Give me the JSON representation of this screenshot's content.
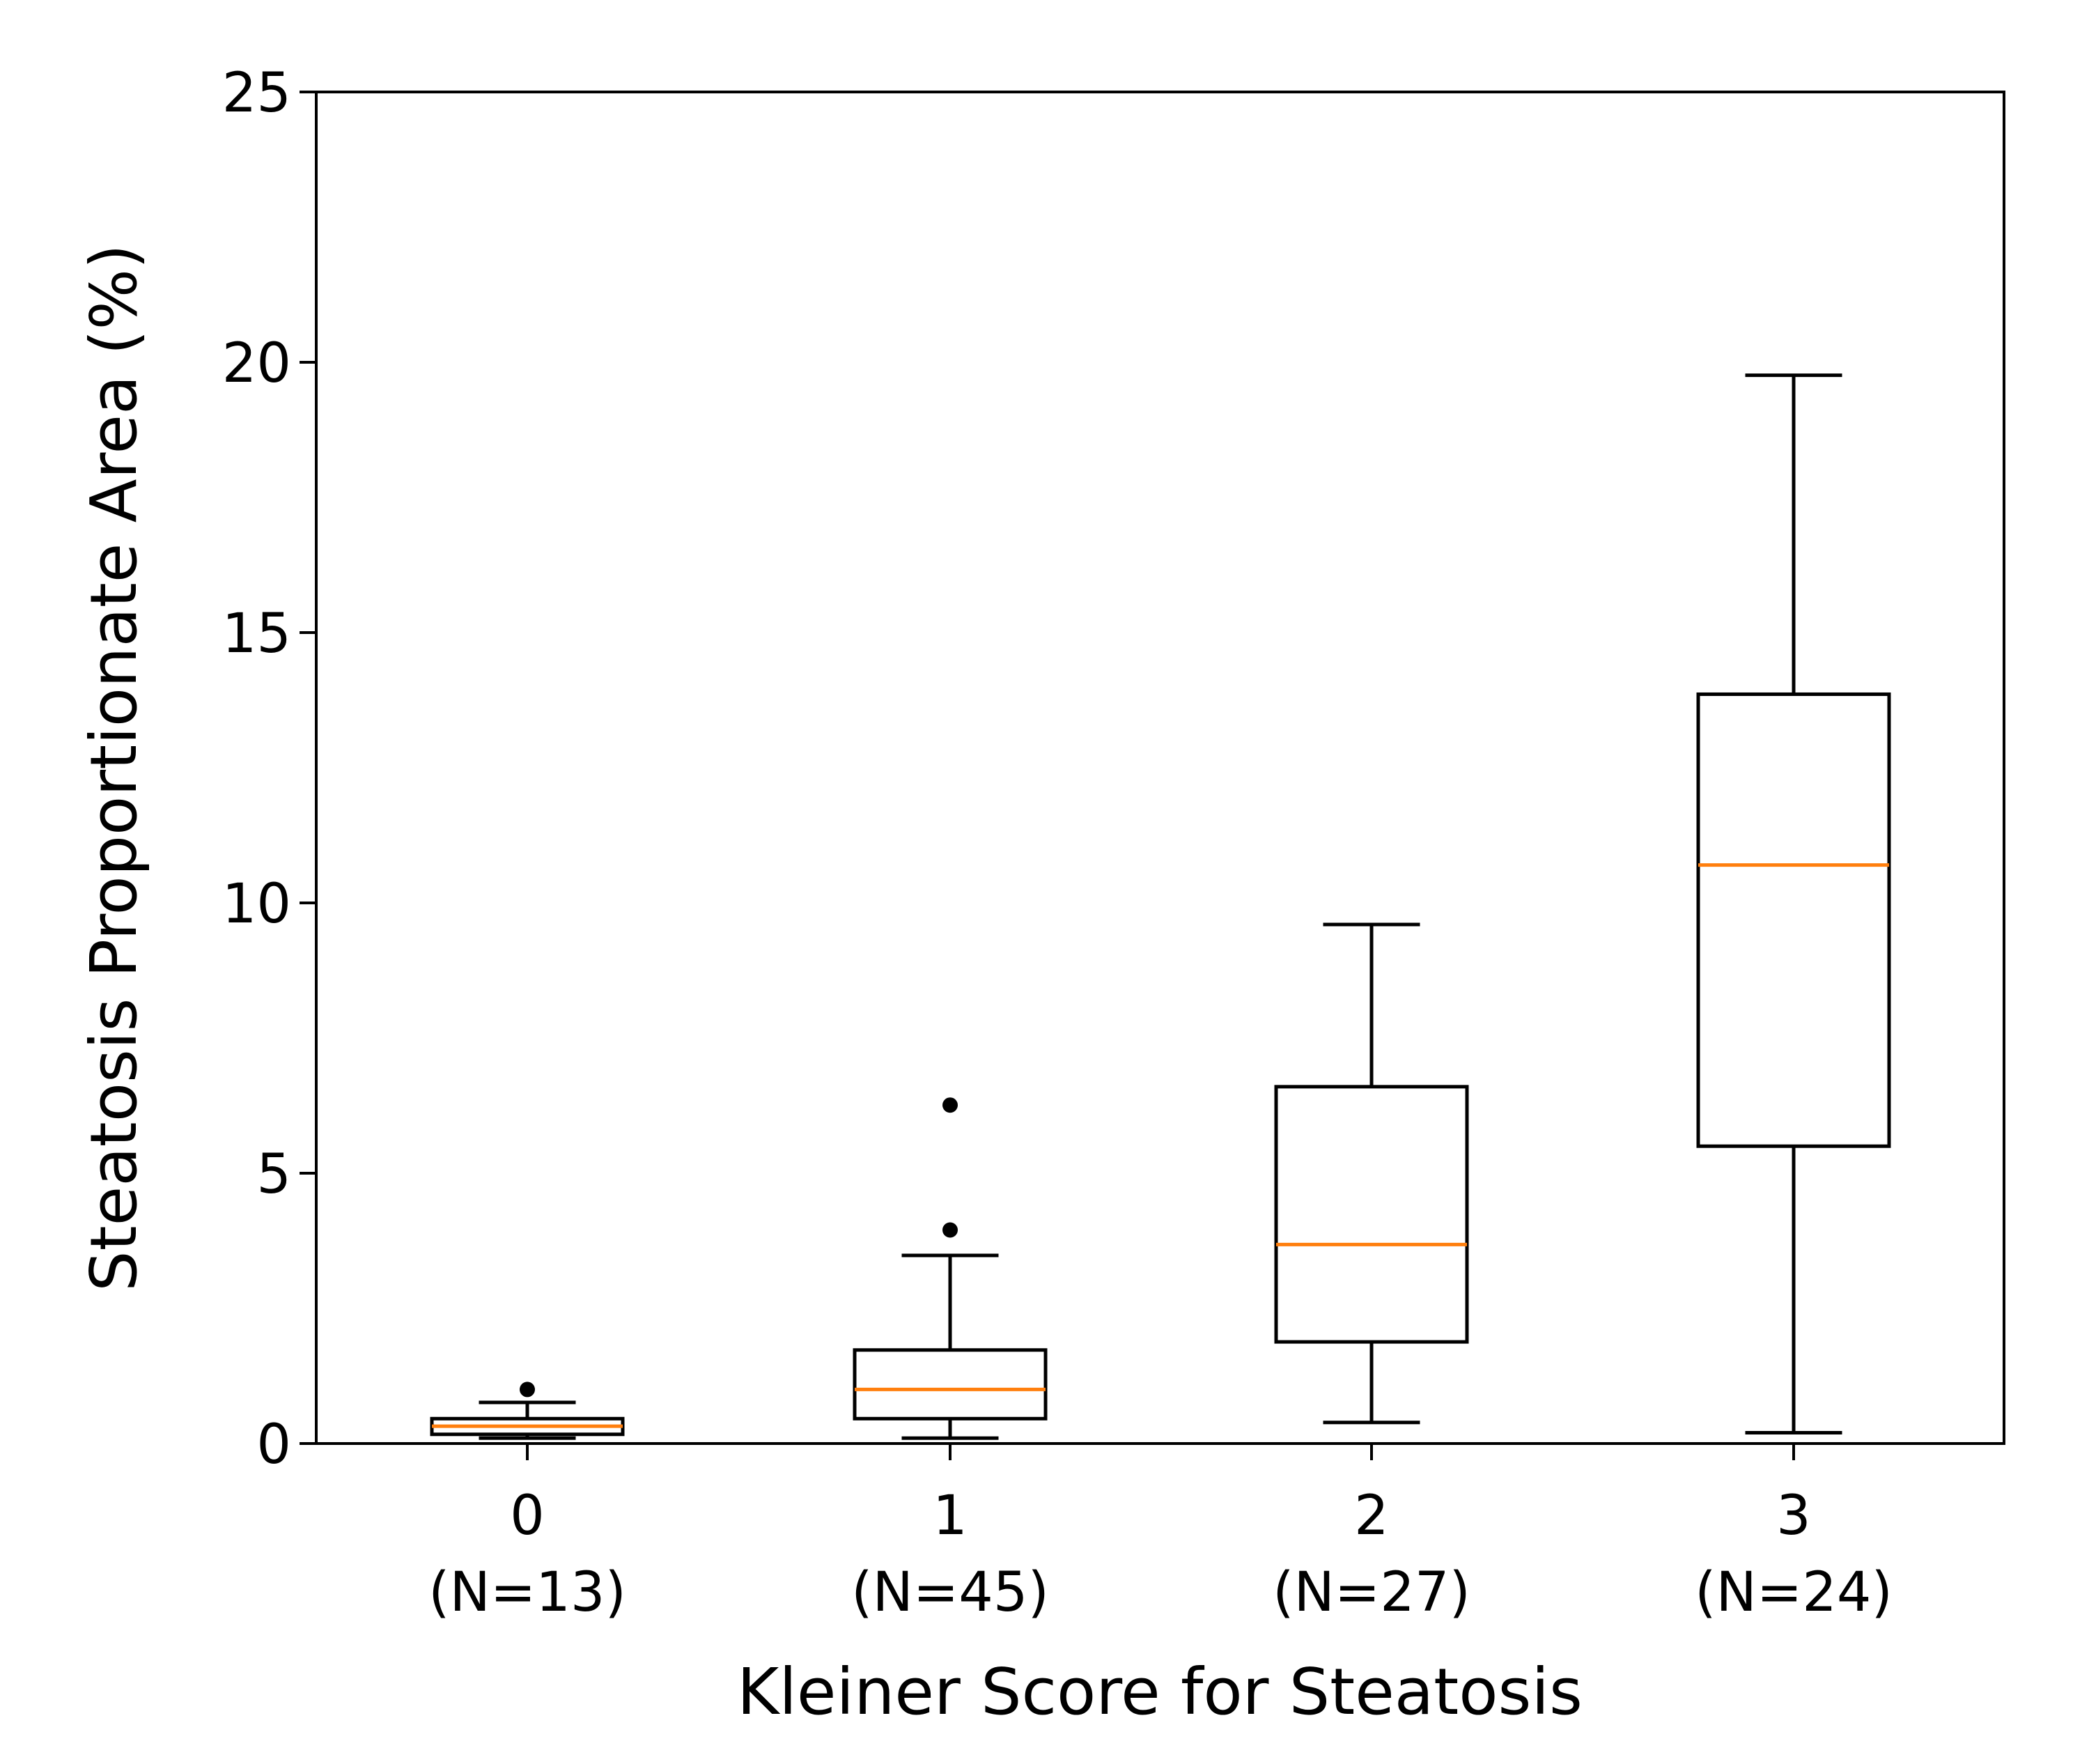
{
  "chart_data": {
    "type": "box",
    "title": "",
    "xlabel": "Kleiner Score for Steatosis",
    "ylabel": "Steatosis Proportionate Area (%)",
    "ylim": [
      0,
      25
    ],
    "yticks": [
      "0",
      "5",
      "10",
      "15",
      "20",
      "25"
    ],
    "categories": [
      "0",
      "1",
      "2",
      "3"
    ],
    "category_counts": [
      "(N=13)",
      "(N=45)",
      "(N=27)",
      "(N=24)"
    ],
    "boxes": [
      {
        "whisker_low": 0.1,
        "q1": 0.17,
        "median": 0.32,
        "q3": 0.46,
        "whisker_high": 0.76,
        "outliers": [
          1.0
        ]
      },
      {
        "whisker_low": 0.1,
        "q1": 0.46,
        "median": 1.0,
        "q3": 1.73,
        "whisker_high": 3.48,
        "outliers": [
          3.95,
          6.26
        ]
      },
      {
        "whisker_low": 0.39,
        "q1": 1.88,
        "median": 3.68,
        "q3": 6.6,
        "whisker_high": 9.6,
        "outliers": []
      },
      {
        "whisker_low": 0.2,
        "q1": 5.5,
        "median": 10.7,
        "q3": 13.86,
        "whisker_high": 19.76,
        "outliers": []
      }
    ],
    "grid": false,
    "colors": {
      "box": "#000000",
      "median": "#ff7f0e",
      "outlier": "#000000"
    }
  }
}
